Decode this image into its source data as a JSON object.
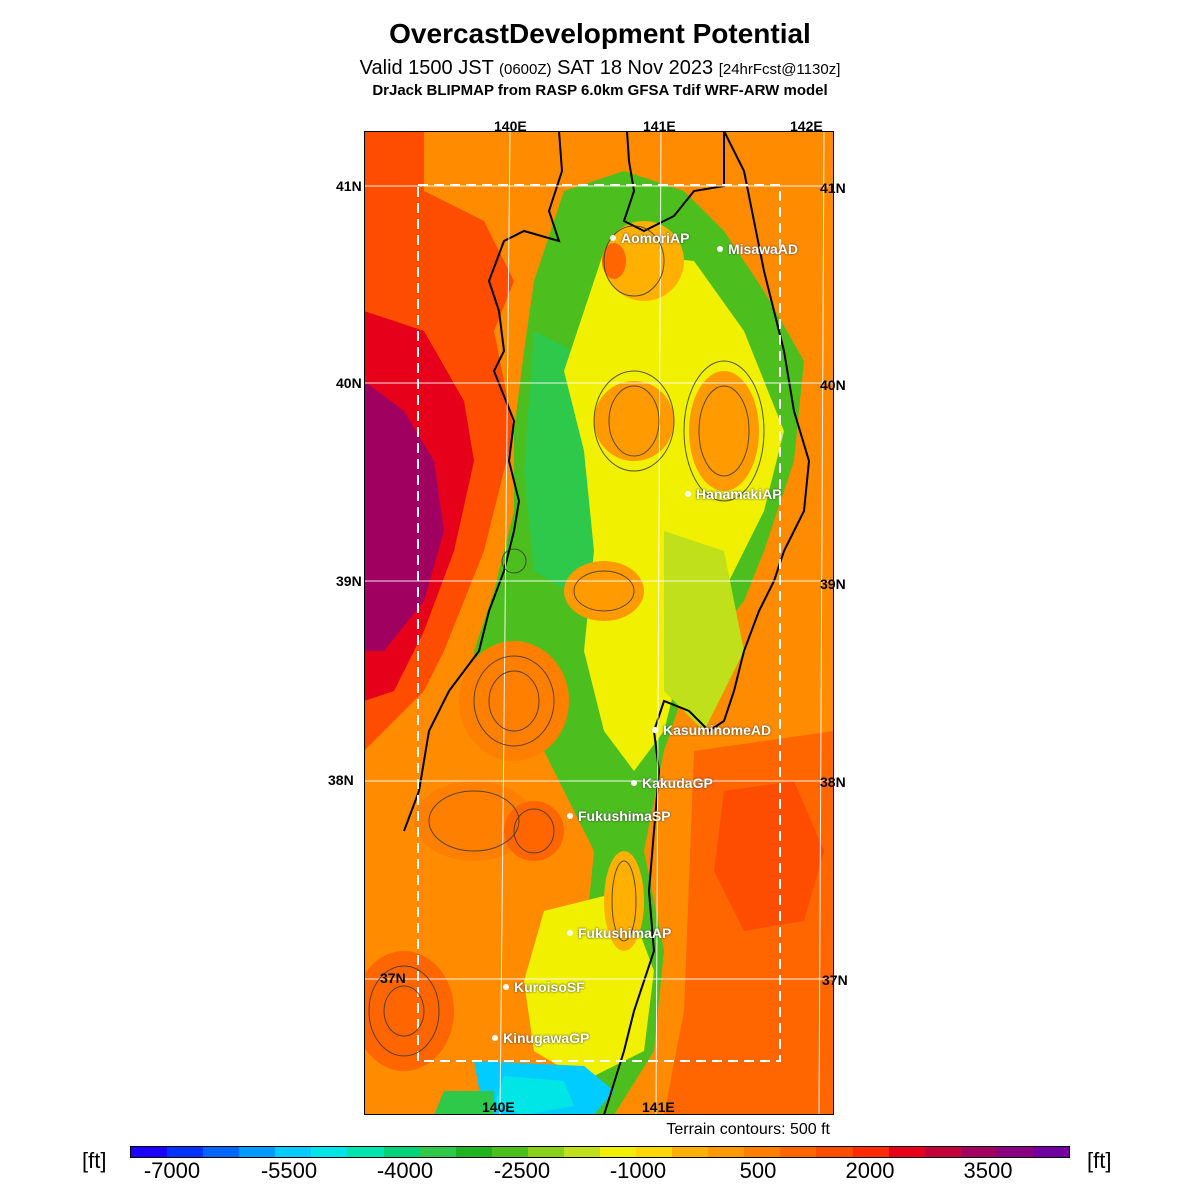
{
  "header": {
    "title": "OvercastDevelopment Potential",
    "valid_main": "Valid 1500 JST",
    "valid_utc": "(0600Z)",
    "valid_date": "SAT 18 Nov 2023",
    "forecast": "[24hrFcst@1130z]",
    "model": "DrJack BLIPMAP from RASP 6.0km GFSA Tdif WRF-ARW model"
  },
  "map": {
    "lon_labels_top": [
      "140E",
      "141E",
      "142E"
    ],
    "lon_labels_bottom": [
      "140E",
      "141E"
    ],
    "lat_labels_left": [
      "41N",
      "40N",
      "39N",
      "38N",
      "37N"
    ],
    "lat_labels_right": [
      "41N",
      "40N",
      "39N",
      "38N",
      "37N"
    ],
    "stations": [
      {
        "name": "AomoriAP"
      },
      {
        "name": "MisawaAD"
      },
      {
        "name": "HanamakiAP"
      },
      {
        "name": "KasuminomeAD"
      },
      {
        "name": "KakudaGP"
      },
      {
        "name": "FukushimaSP"
      },
      {
        "name": "FukushimaAP"
      },
      {
        "name": "KuroisoSF"
      },
      {
        "name": "KinugawaGP"
      }
    ],
    "terrain_note": "Terrain contours: 500 ft"
  },
  "colorbar": {
    "unit_left": "[ft]",
    "unit_right": "[ft]",
    "labels": [
      "-7000",
      "-5500",
      "-4000",
      "-2500",
      "-1000",
      "500",
      "2000",
      "3500"
    ],
    "colors": [
      "#1a00ff",
      "#0033ff",
      "#0066ff",
      "#0099ff",
      "#00ccff",
      "#00e5e5",
      "#00e5b0",
      "#00d27a",
      "#2ec84a",
      "#1fb31f",
      "#4cbf1f",
      "#8ad01a",
      "#bfe01a",
      "#f0f000",
      "#ffd700",
      "#ffb000",
      "#ff9a00",
      "#ff8000",
      "#ff6600",
      "#ff4d00",
      "#ff2a00",
      "#e6001a",
      "#c4003a",
      "#a00060",
      "#8a0080",
      "#7000a0"
    ]
  }
}
